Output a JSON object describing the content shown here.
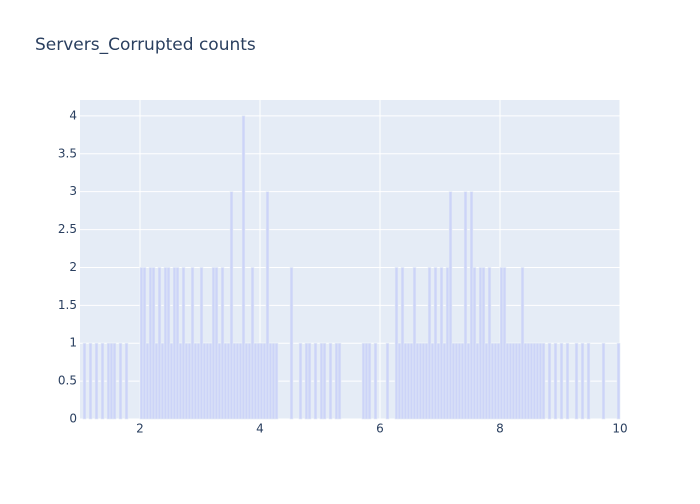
{
  "chart_data": {
    "type": "histogram",
    "title": "Servers_Corrupted counts",
    "bins": [
      1,
      1.05,
      1.1,
      1.15,
      1.2,
      1.25,
      1.3,
      1.35,
      1.4,
      1.45,
      1.5,
      1.55,
      1.6,
      1.65,
      1.7,
      1.75,
      1.8,
      1.85,
      1.9,
      1.95,
      2,
      2.05,
      2.1,
      2.15,
      2.2,
      2.25,
      2.3,
      2.35,
      2.4,
      2.45,
      2.5,
      2.55,
      2.6,
      2.65,
      2.7,
      2.75,
      2.8,
      2.85,
      2.9,
      2.95,
      3,
      3.05,
      3.1,
      3.15,
      3.2,
      3.25,
      3.3,
      3.35,
      3.4,
      3.45,
      3.5,
      3.55,
      3.6,
      3.65,
      3.7,
      3.75,
      3.8,
      3.85,
      3.9,
      3.95,
      4,
      4.05,
      4.1,
      4.15,
      4.2,
      4.25,
      4.3,
      4.35,
      4.4,
      4.45,
      4.5,
      4.55,
      4.6,
      4.65,
      4.7,
      4.75,
      4.8,
      4.85,
      4.9,
      4.95,
      5,
      5.05,
      5.1,
      5.15,
      5.2,
      5.25,
      5.3,
      5.35,
      5.4,
      5.45,
      5.5,
      5.55,
      5.6,
      5.65,
      5.7,
      5.75,
      5.8,
      5.85,
      5.9,
      5.95,
      6,
      6.05,
      6.1,
      6.15,
      6.2,
      6.25,
      6.3,
      6.35,
      6.4,
      6.45,
      6.5,
      6.55,
      6.6,
      6.65,
      6.7,
      6.75,
      6.8,
      6.85,
      6.9,
      6.95,
      7,
      7.05,
      7.1,
      7.15,
      7.2,
      7.25,
      7.3,
      7.35,
      7.4,
      7.45,
      7.5,
      7.55,
      7.6,
      7.65,
      7.7,
      7.75,
      7.8,
      7.85,
      7.9,
      7.95,
      8,
      8.05,
      8.1,
      8.15,
      8.2,
      8.25,
      8.3,
      8.35,
      8.4,
      8.45,
      8.5,
      8.55,
      8.6,
      8.65,
      8.7,
      8.75,
      8.8,
      8.85,
      8.9,
      8.95,
      9,
      9.05,
      9.1,
      9.15,
      9.2,
      9.25,
      9.3,
      9.35,
      9.4,
      9.45,
      9.5,
      9.55,
      9.6,
      9.65,
      9.7,
      9.75,
      9.8,
      9.85,
      9.9,
      9.95,
      10
    ],
    "counts": [
      0,
      1,
      0,
      1,
      0,
      1,
      0,
      1,
      0,
      1,
      1,
      1,
      0,
      1,
      0,
      1,
      0,
      0,
      0,
      0,
      2,
      2,
      1,
      2,
      2,
      1,
      2,
      1,
      2,
      2,
      1,
      2,
      2,
      1,
      2,
      1,
      1,
      2,
      1,
      1,
      2,
      1,
      1,
      1,
      2,
      2,
      1,
      2,
      1,
      1,
      3,
      1,
      1,
      1,
      4,
      1,
      1,
      2,
      1,
      1,
      1,
      1,
      3,
      1,
      1,
      1,
      0,
      0,
      0,
      0,
      2,
      0,
      0,
      1,
      0,
      1,
      1,
      0,
      1,
      0,
      1,
      1,
      0,
      1,
      0,
      1,
      1,
      0,
      0,
      0,
      0,
      0,
      0,
      0,
      1,
      1,
      1,
      0,
      1,
      0,
      0,
      0,
      1,
      0,
      0,
      2,
      1,
      2,
      1,
      1,
      1,
      2,
      1,
      1,
      1,
      1,
      2,
      1,
      2,
      1,
      2,
      1,
      2,
      3,
      1,
      1,
      1,
      1,
      3,
      1,
      3,
      2,
      1,
      2,
      2,
      1,
      2,
      1,
      1,
      1,
      2,
      2,
      1,
      1,
      1,
      1,
      1,
      2,
      1,
      1,
      1,
      1,
      1,
      1,
      1,
      0,
      1,
      0,
      1,
      0,
      1,
      0,
      1,
      0,
      0,
      1,
      0,
      1,
      0,
      1,
      0,
      0,
      0,
      0,
      1,
      0,
      0,
      0,
      0,
      1
    ],
    "color": "#ccd4f8",
    "xlim": [
      1,
      10
    ],
    "xticks": [
      2,
      4,
      6,
      8,
      10
    ],
    "ylim": [
      0,
      4.21
    ],
    "yticks": [
      0,
      0.5,
      1,
      1.5,
      2,
      2.5,
      3,
      3.5,
      4
    ],
    "grid": true
  }
}
